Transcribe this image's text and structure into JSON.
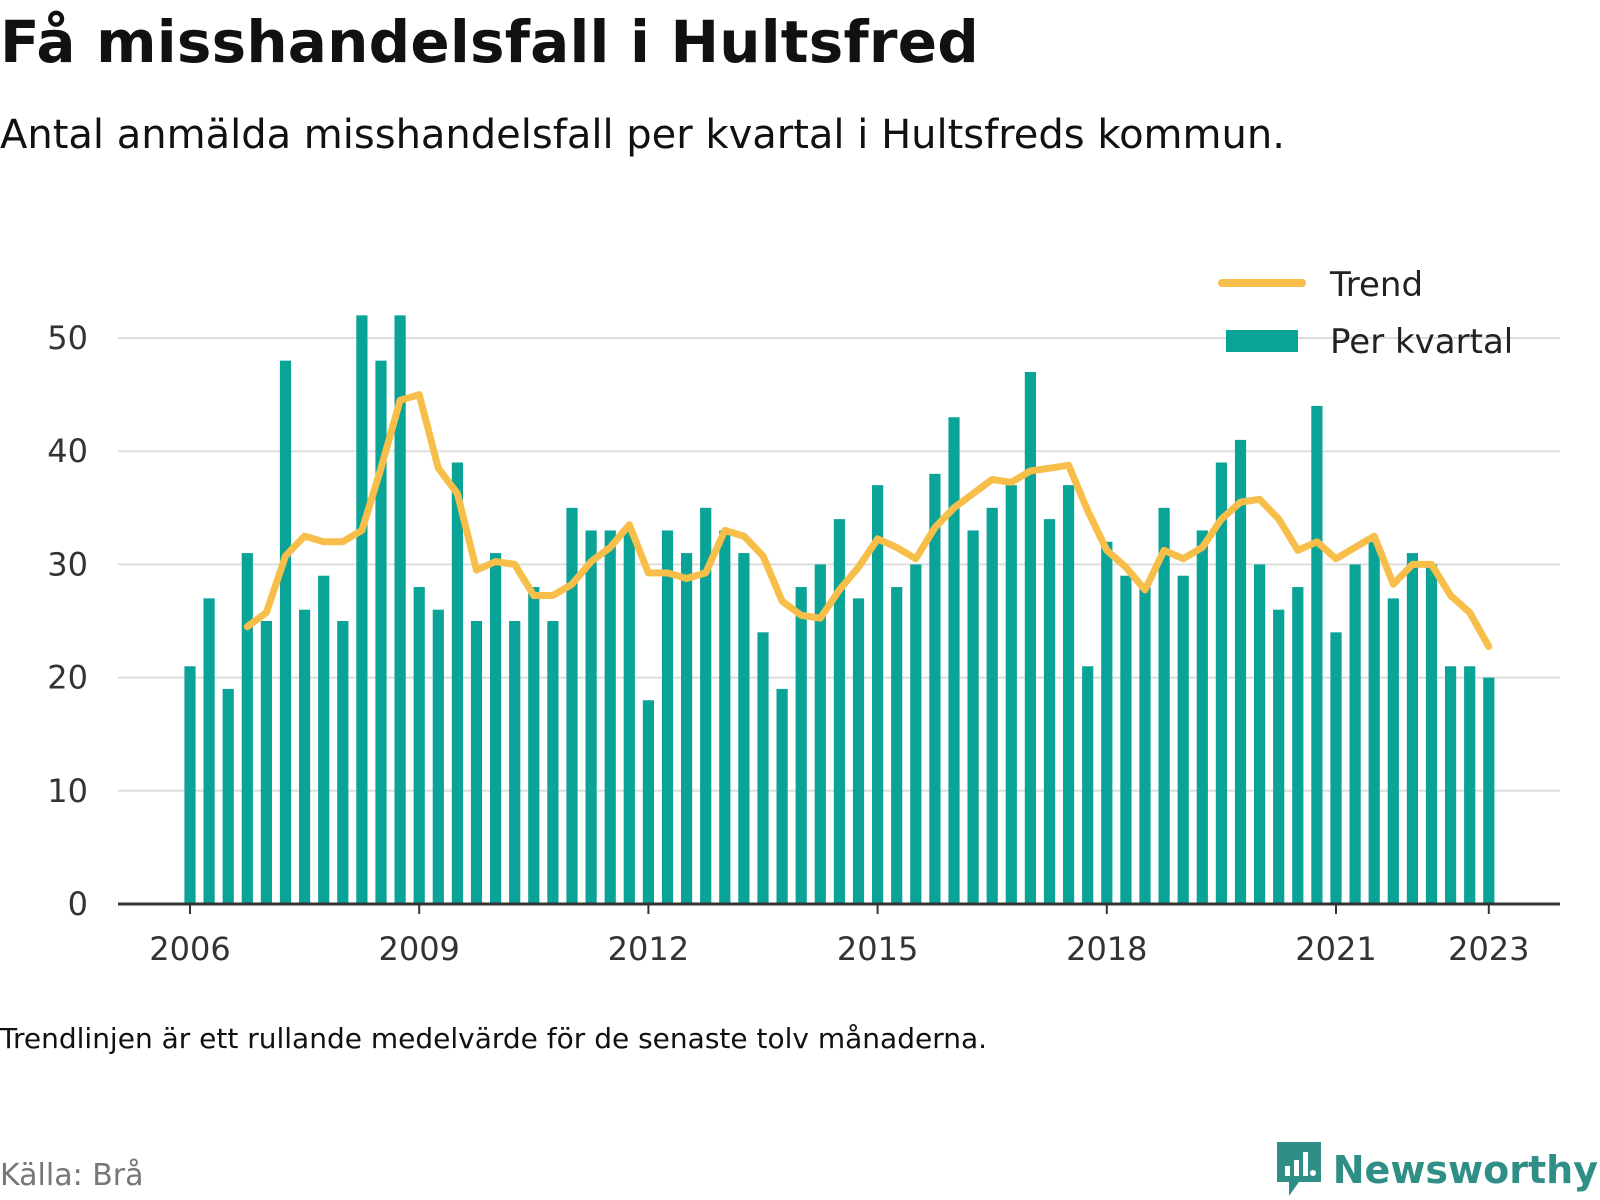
{
  "header": {
    "title": "Få misshandelsfall i Hultsfred",
    "subtitle": "Antal anmälda misshandelsfall per kvartal i Hultsfreds kommun."
  },
  "footer": {
    "note": "Trendlinjen är ett rullande medelvärde för de senaste tolv månaderna.",
    "source": "Källa: Brå",
    "brand": "Newsworthy"
  },
  "colors": {
    "bar": "#0aa397",
    "trend": "#f7be4a",
    "grid": "#dddddd",
    "axis": "#333333",
    "brand": "#2f8f87"
  },
  "chart_data": {
    "type": "bar",
    "title": "Få misshandelsfall i Hultsfred",
    "subtitle": "Antal anmälda misshandelsfall per kvartal i Hultsfreds kommun.",
    "xlabel": "",
    "ylabel": "",
    "ylim": [
      0,
      55
    ],
    "yticks": [
      0,
      10,
      20,
      30,
      40,
      50
    ],
    "x_ticks": [
      "2006",
      "2009",
      "2012",
      "2015",
      "2018",
      "2021",
      "2023"
    ],
    "x_tick_positions": [
      2006,
      2009,
      2012,
      2015,
      2018,
      2021,
      2023
    ],
    "grid": true,
    "legend": {
      "placement": "top-right",
      "entries": [
        "Trend",
        "Per kvartal"
      ]
    },
    "series": [
      {
        "name": "Per kvartal",
        "type": "bar",
        "x_start": 2006.0,
        "x_step": 0.25,
        "values": [
          21,
          27,
          19,
          31,
          25,
          48,
          26,
          29,
          25,
          52,
          48,
          52,
          28,
          26,
          39,
          25,
          31,
          25,
          28,
          25,
          35,
          33,
          33,
          33,
          18,
          33,
          31,
          35,
          33,
          31,
          24,
          19,
          28,
          30,
          34,
          27,
          37,
          28,
          30,
          38,
          43,
          33,
          35,
          37,
          47,
          34,
          37,
          21,
          32,
          29,
          28,
          35,
          29,
          33,
          39,
          41,
          30,
          26,
          28,
          44,
          24,
          30,
          32,
          27,
          31,
          30,
          21,
          21,
          20
        ]
      },
      {
        "name": "Trend",
        "type": "line",
        "x_start": 2006.75,
        "x_step": 0.25,
        "values": [
          24.5,
          25.75,
          30.75,
          32.5,
          32.0,
          32.0,
          33.0,
          38.5,
          44.5,
          45.0,
          38.5,
          36.25,
          29.5,
          30.25,
          30.0,
          27.25,
          27.25,
          28.25,
          30.25,
          31.5,
          33.5,
          29.25,
          29.25,
          28.75,
          29.25,
          33.0,
          32.5,
          30.75,
          26.75,
          25.5,
          25.25,
          27.75,
          29.75,
          32.25,
          31.5,
          30.5,
          33.25,
          35.0,
          36.25,
          37.5,
          37.25,
          38.25,
          38.5,
          38.75,
          34.75,
          31.25,
          29.75,
          27.75,
          31.25,
          30.5,
          31.5,
          34.0,
          35.5,
          35.75,
          34.0,
          31.25,
          32.0,
          30.5,
          31.5,
          32.5,
          28.25,
          30.0,
          30.0,
          27.25,
          25.75,
          22.75
        ]
      }
    ]
  }
}
